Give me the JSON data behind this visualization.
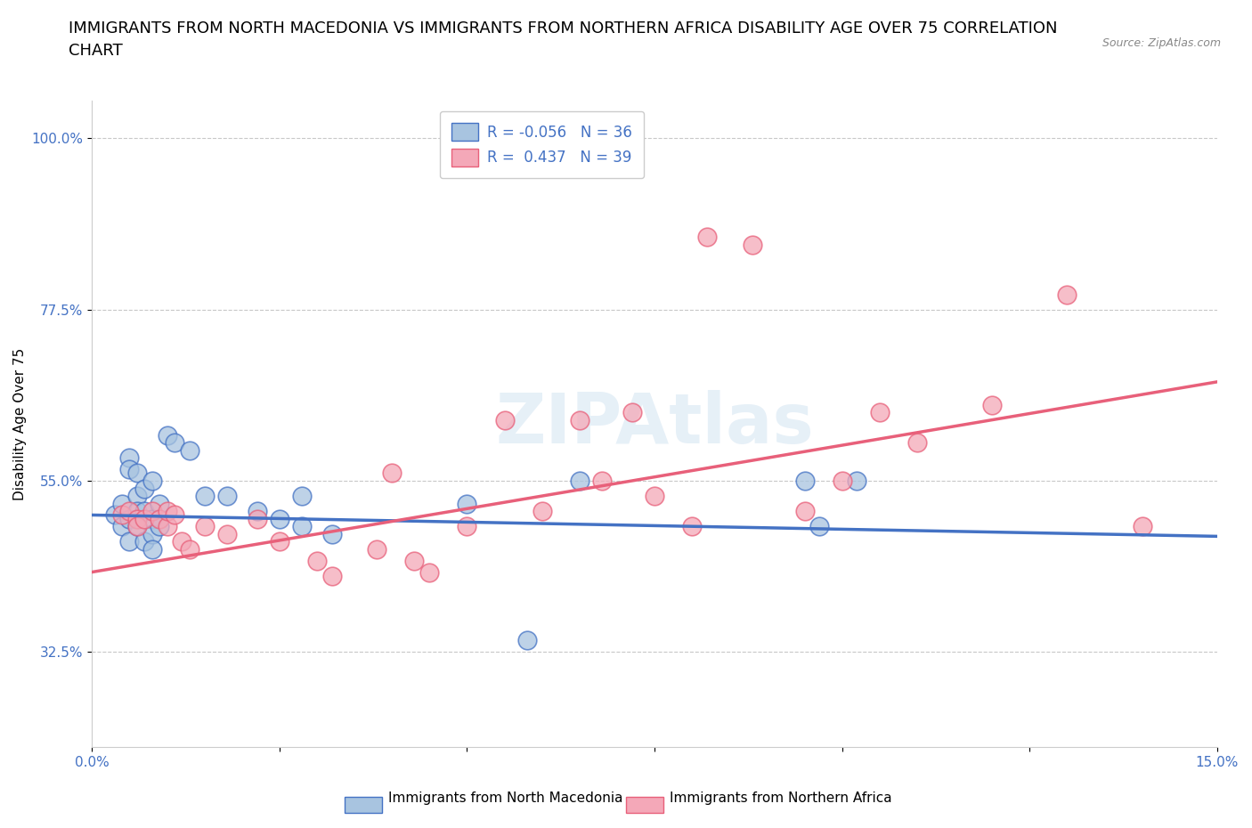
{
  "title": "IMMIGRANTS FROM NORTH MACEDONIA VS IMMIGRANTS FROM NORTHERN AFRICA DISABILITY AGE OVER 75 CORRELATION\nCHART",
  "source": "Source: ZipAtlas.com",
  "ylabel": "Disability Age Over 75",
  "xlabel": "",
  "xlim": [
    0.0,
    0.15
  ],
  "ylim": [
    0.2,
    1.05
  ],
  "yticks": [
    0.325,
    0.55,
    0.775,
    1.0
  ],
  "ytick_labels": [
    "32.5%",
    "55.0%",
    "77.5%",
    "100.0%"
  ],
  "xticks": [
    0.0,
    0.025,
    0.05,
    0.075,
    0.1,
    0.125,
    0.15
  ],
  "xtick_labels": [
    "0.0%",
    "",
    "",
    "",
    "",
    "",
    "15.0%"
  ],
  "watermark": "ZIPAtlas",
  "color_blue": "#a8c4e0",
  "color_pink": "#f4a8b8",
  "line_blue": "#4472c4",
  "line_pink": "#e8607a",
  "label1": "Immigrants from North Macedonia",
  "label2": "Immigrants from Northern Africa",
  "blue_trend_x": [
    0.0,
    0.15
  ],
  "blue_trend_y": [
    0.505,
    0.477
  ],
  "pink_trend_x": [
    0.0,
    0.15
  ],
  "pink_trend_y": [
    0.43,
    0.68
  ],
  "blue_x": [
    0.003,
    0.004,
    0.004,
    0.005,
    0.005,
    0.005,
    0.005,
    0.006,
    0.006,
    0.006,
    0.006,
    0.007,
    0.007,
    0.007,
    0.008,
    0.008,
    0.008,
    0.008,
    0.009,
    0.009,
    0.01,
    0.011,
    0.013,
    0.015,
    0.018,
    0.022,
    0.025,
    0.028,
    0.028,
    0.032,
    0.05,
    0.058,
    0.065,
    0.095,
    0.097,
    0.102
  ],
  "blue_y": [
    0.505,
    0.52,
    0.49,
    0.58,
    0.565,
    0.5,
    0.47,
    0.53,
    0.51,
    0.56,
    0.49,
    0.54,
    0.51,
    0.47,
    0.55,
    0.5,
    0.48,
    0.46,
    0.52,
    0.49,
    0.61,
    0.6,
    0.59,
    0.53,
    0.53,
    0.51,
    0.5,
    0.53,
    0.49,
    0.48,
    0.52,
    0.34,
    0.55,
    0.55,
    0.49,
    0.55
  ],
  "pink_x": [
    0.004,
    0.005,
    0.006,
    0.006,
    0.007,
    0.008,
    0.009,
    0.01,
    0.01,
    0.011,
    0.012,
    0.013,
    0.015,
    0.018,
    0.022,
    0.025,
    0.03,
    0.032,
    0.038,
    0.04,
    0.043,
    0.045,
    0.05,
    0.055,
    0.06,
    0.065,
    0.068,
    0.072,
    0.075,
    0.08,
    0.082,
    0.088,
    0.095,
    0.1,
    0.105,
    0.11,
    0.12,
    0.13,
    0.14
  ],
  "pink_y": [
    0.505,
    0.51,
    0.5,
    0.49,
    0.5,
    0.51,
    0.5,
    0.49,
    0.51,
    0.505,
    0.47,
    0.46,
    0.49,
    0.48,
    0.5,
    0.47,
    0.445,
    0.425,
    0.46,
    0.56,
    0.445,
    0.43,
    0.49,
    0.63,
    0.51,
    0.63,
    0.55,
    0.64,
    0.53,
    0.49,
    0.87,
    0.86,
    0.51,
    0.55,
    0.64,
    0.6,
    0.65,
    0.795,
    0.49
  ],
  "title_fontsize": 13,
  "axis_label_fontsize": 11,
  "tick_fontsize": 11,
  "tick_color": "#4472c4",
  "background_color": "#ffffff",
  "grid_color": "#c8c8c8"
}
